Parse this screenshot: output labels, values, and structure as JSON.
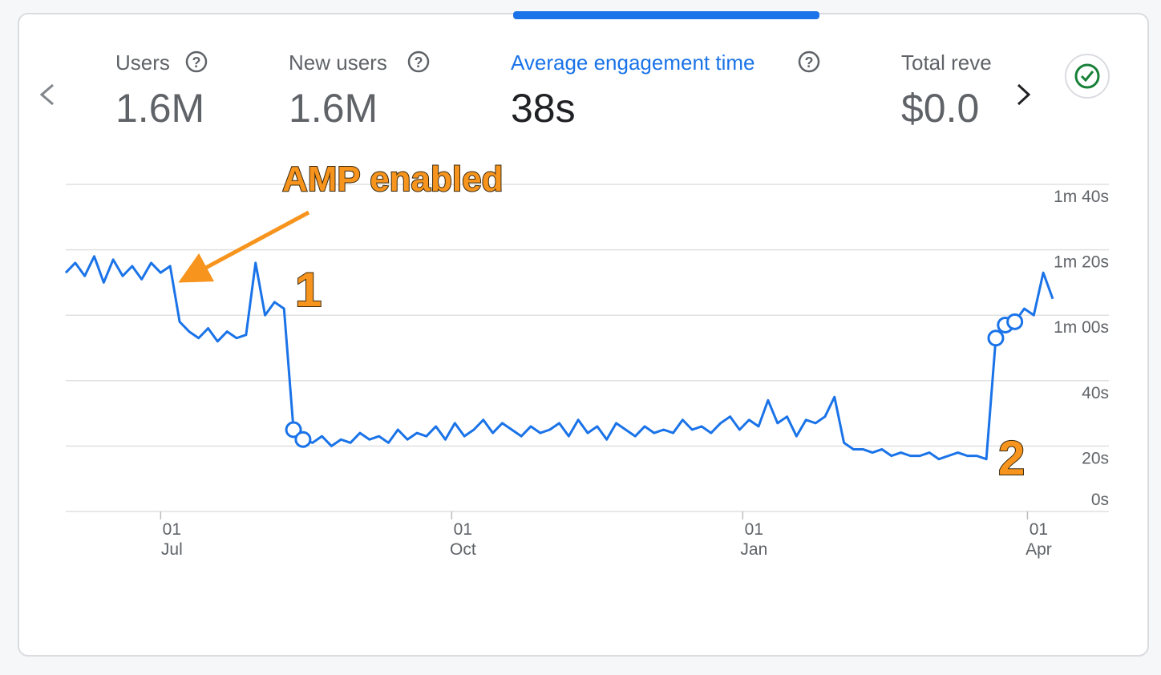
{
  "tabs": [
    {
      "label": "Users",
      "value": "1.6M"
    },
    {
      "label": "New users",
      "value": "1.6M"
    },
    {
      "label": "Average engagement time",
      "value": "38s"
    },
    {
      "label": "Total reve",
      "value": "$0.0"
    }
  ],
  "chart_data": {
    "type": "line",
    "x": [
      -30,
      -27,
      -24,
      -21,
      -18,
      -15,
      -12,
      -9,
      -6,
      -3,
      0,
      3,
      6,
      9,
      12,
      15,
      18,
      21,
      24,
      27,
      30,
      33,
      36,
      39,
      42,
      45,
      48,
      51,
      54,
      57,
      60,
      63,
      66,
      69,
      72,
      75,
      78,
      81,
      84,
      87,
      90,
      93,
      96,
      99,
      102,
      105,
      108,
      111,
      114,
      117,
      120,
      123,
      126,
      129,
      132,
      135,
      138,
      141,
      144,
      147,
      150,
      153,
      156,
      159,
      162,
      165,
      168,
      171,
      174,
      177,
      180,
      183,
      186,
      189,
      192,
      195,
      198,
      201,
      204,
      207,
      210,
      213,
      216,
      219,
      222,
      225,
      228,
      231,
      234,
      237,
      240,
      243,
      246,
      249,
      252,
      255,
      258,
      261,
      264,
      267,
      270,
      273,
      276,
      279,
      282
    ],
    "values": [
      73,
      76,
      72,
      78,
      70,
      77,
      72,
      75,
      71,
      76,
      73,
      75,
      58,
      55,
      53,
      56,
      52,
      55,
      53,
      54,
      76,
      60,
      64,
      62,
      25,
      22,
      21,
      23,
      20,
      22,
      21,
      24,
      22,
      23,
      21,
      25,
      22,
      24,
      23,
      26,
      22,
      27,
      23,
      25,
      28,
      24,
      27,
      25,
      23,
      26,
      24,
      25,
      27,
      23,
      28,
      24,
      26,
      22,
      27,
      25,
      23,
      26,
      24,
      25,
      24,
      28,
      25,
      26,
      24,
      27,
      29,
      25,
      28,
      26,
      34,
      27,
      29,
      23,
      28,
      27,
      29,
      35,
      21,
      19,
      19,
      18,
      19,
      17,
      18,
      17,
      17,
      18,
      16,
      17,
      18,
      17,
      17,
      16,
      53,
      57,
      58,
      62,
      60,
      73,
      65
    ],
    "color": "#1a73e8",
    "anomaly_points": [
      24,
      25,
      98,
      99,
      100
    ],
    "xlim": [
      -30,
      282
    ],
    "xticks": [
      {
        "value": 0,
        "label": "01\nJul"
      },
      {
        "value": 92,
        "label": "01\nOct"
      },
      {
        "value": 184,
        "label": "01\nJan"
      },
      {
        "value": 274,
        "label": "01\nApr"
      }
    ],
    "ylim": [
      0,
      100
    ],
    "yticks": [
      {
        "value": 0,
        "label": "0s"
      },
      {
        "value": 20,
        "label": "20s"
      },
      {
        "value": 40,
        "label": "40s"
      },
      {
        "value": 60,
        "label": "1m 00s"
      },
      {
        "value": 80,
        "label": "1m 20s"
      },
      {
        "value": 100,
        "label": "1m 40s"
      }
    ],
    "grid": true,
    "annotations": [
      {
        "text": "AMP enabled"
      },
      {
        "text": "1"
      },
      {
        "text": "2"
      }
    ]
  }
}
